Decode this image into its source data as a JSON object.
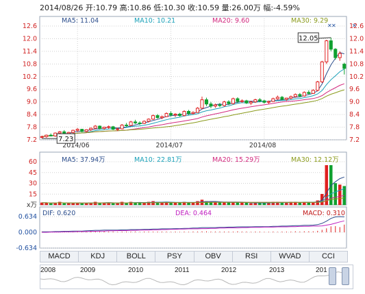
{
  "header": {
    "text": "2014/08/26 开:10.79  高:10.86  低:10.30  收:10.59  量:26.00万  幅:-4.59%"
  },
  "price_panel": {
    "ma": [
      {
        "label": "MA5: 11.04",
        "color": "#2b4d8c"
      },
      {
        "label": "MA10: 10.21",
        "color": "#19a0b8"
      },
      {
        "label": "MA20: 9.60",
        "color": "#d2287e"
      },
      {
        "label": "MA30: 9.29",
        "color": "#8a9a1a"
      }
    ],
    "y_ticks": [
      "12.6",
      "12.0",
      "11.4",
      "10.8",
      "10.2",
      "9.6",
      "9.0",
      "8.4",
      "7.8",
      "7.2"
    ],
    "x_ticks": [
      "2014/06",
      "2014/07",
      "2014/08"
    ],
    "high_label": "12.05",
    "low_label": "7.23"
  },
  "volume_panel": {
    "ma": [
      {
        "label": "MA5: 37.94万",
        "color": "#2b4d8c"
      },
      {
        "label": "MA10: 22.81万",
        "color": "#19a0b8"
      },
      {
        "label": "MA20: 15.29万",
        "color": "#d2287e"
      },
      {
        "label": "MA30: 12.12万",
        "color": "#8a9a1a"
      }
    ],
    "y_ticks": [
      "60",
      "45",
      "30",
      "15"
    ],
    "unit": "x万"
  },
  "macd_panel": {
    "dif": {
      "label": "DIF: 0.620",
      "color": "#2b4d8c"
    },
    "dea": {
      "label": "DEA: 0.464",
      "color": "#c020c0"
    },
    "macd": {
      "label": "MACD: 0.310",
      "color": "#c01818"
    },
    "y_ticks": [
      "0.634",
      "0.000",
      "-0.634"
    ]
  },
  "tabs": [
    "MACD",
    "KDJ",
    "BOLL",
    "PSY",
    "OBV",
    "RSI",
    "WVAD",
    "CCI"
  ],
  "active_tab": "MACD",
  "years": [
    "2008",
    "2009",
    "2010",
    "2011",
    "2012",
    "2013",
    "201"
  ],
  "colors": {
    "up": "#e02020",
    "down": "#10a030",
    "grid": "#d0d0d0",
    "axis_red": "#d02020",
    "axis_blue": "#2050a0"
  },
  "chart_data": {
    "type": "candlestick",
    "title": "",
    "x_ticks": [
      "2014/06",
      "2014/07",
      "2014/08"
    ],
    "ylim": [
      7.2,
      12.6
    ],
    "grid": true,
    "candles": [
      [
        7.32,
        7.4,
        7.26,
        7.35
      ],
      [
        7.35,
        7.45,
        7.3,
        7.42
      ],
      [
        7.42,
        7.5,
        7.36,
        7.38
      ],
      [
        7.38,
        7.55,
        7.35,
        7.52
      ],
      [
        7.52,
        7.62,
        7.45,
        7.58
      ],
      [
        7.58,
        7.66,
        7.48,
        7.5
      ],
      [
        7.5,
        7.58,
        7.42,
        7.55
      ],
      [
        7.55,
        7.68,
        7.5,
        7.65
      ],
      [
        7.65,
        7.75,
        7.58,
        7.7
      ],
      [
        7.7,
        7.72,
        7.55,
        7.6
      ],
      [
        7.6,
        7.7,
        7.55,
        7.68
      ],
      [
        7.68,
        7.78,
        7.62,
        7.75
      ],
      [
        7.75,
        7.9,
        7.7,
        7.85
      ],
      [
        7.85,
        7.88,
        7.7,
        7.74
      ],
      [
        7.74,
        7.82,
        7.68,
        7.8
      ],
      [
        7.8,
        7.88,
        7.72,
        7.82
      ],
      [
        7.82,
        7.86,
        7.66,
        7.7
      ],
      [
        7.7,
        7.78,
        7.62,
        7.72
      ],
      [
        7.72,
        7.95,
        7.7,
        7.9
      ],
      [
        7.9,
        8.0,
        7.82,
        7.88
      ],
      [
        7.88,
        8.1,
        7.85,
        8.05
      ],
      [
        8.05,
        8.15,
        7.95,
        8.0
      ],
      [
        8.0,
        8.08,
        7.9,
        7.98
      ],
      [
        7.98,
        8.12,
        7.95,
        8.08
      ],
      [
        8.08,
        8.22,
        8.02,
        8.18
      ],
      [
        8.18,
        8.4,
        8.15,
        8.35
      ],
      [
        8.35,
        8.42,
        8.2,
        8.25
      ],
      [
        8.25,
        8.35,
        8.18,
        8.3
      ],
      [
        8.3,
        8.5,
        8.28,
        8.45
      ],
      [
        8.45,
        8.55,
        8.3,
        8.38
      ],
      [
        8.38,
        8.46,
        8.28,
        8.42
      ],
      [
        8.42,
        8.48,
        8.3,
        8.35
      ],
      [
        8.35,
        8.6,
        8.32,
        8.55
      ],
      [
        8.55,
        8.62,
        8.38,
        8.45
      ],
      [
        8.45,
        8.55,
        8.4,
        8.5
      ],
      [
        8.5,
        8.75,
        8.48,
        8.7
      ],
      [
        8.7,
        9.25,
        8.65,
        9.1
      ],
      [
        9.1,
        9.2,
        8.8,
        8.9
      ],
      [
        8.9,
        9.0,
        8.7,
        8.8
      ],
      [
        8.8,
        8.92,
        8.72,
        8.86
      ],
      [
        8.86,
        8.95,
        8.75,
        8.82
      ],
      [
        8.82,
        9.05,
        8.78,
        9.0
      ],
      [
        9.0,
        9.08,
        8.85,
        8.92
      ],
      [
        8.92,
        9.2,
        8.88,
        9.15
      ],
      [
        9.15,
        9.22,
        8.95,
        9.02
      ],
      [
        9.02,
        9.12,
        8.95,
        9.05
      ],
      [
        9.05,
        9.1,
        8.9,
        8.95
      ],
      [
        8.95,
        9.05,
        8.85,
        9.0
      ],
      [
        9.0,
        9.15,
        8.95,
        9.1
      ],
      [
        9.1,
        9.18,
        8.98,
        9.05
      ],
      [
        9.05,
        9.1,
        8.92,
        8.98
      ],
      [
        8.98,
        9.06,
        8.9,
        9.02
      ],
      [
        9.02,
        9.2,
        9.0,
        9.15
      ],
      [
        9.15,
        9.3,
        9.1,
        9.22
      ],
      [
        9.22,
        9.28,
        9.08,
        9.12
      ],
      [
        9.12,
        9.2,
        9.05,
        9.18
      ],
      [
        9.18,
        9.3,
        9.12,
        9.25
      ],
      [
        9.25,
        9.4,
        9.2,
        9.35
      ],
      [
        9.35,
        9.42,
        9.22,
        9.28
      ],
      [
        9.28,
        9.5,
        9.25,
        9.45
      ],
      [
        9.45,
        9.55,
        9.35,
        9.4
      ],
      [
        9.4,
        9.6,
        9.38,
        9.55
      ],
      [
        9.55,
        10.0,
        9.5,
        9.95
      ],
      [
        9.95,
        10.95,
        9.9,
        10.9
      ],
      [
        10.9,
        11.95,
        10.8,
        11.9
      ],
      [
        11.9,
        12.05,
        11.4,
        11.5
      ],
      [
        11.5,
        11.55,
        11.0,
        11.1
      ],
      [
        11.1,
        11.4,
        10.95,
        11.3
      ],
      [
        10.79,
        10.86,
        10.3,
        10.59
      ]
    ],
    "volume": {
      "ylim": [
        0,
        60
      ],
      "values": [
        3,
        3,
        2,
        3,
        4,
        2,
        2,
        3,
        3,
        2,
        2,
        3,
        4,
        3,
        3,
        3,
        2,
        2,
        4,
        3,
        4,
        3,
        3,
        3,
        4,
        5,
        4,
        3,
        4,
        3,
        3,
        3,
        4,
        3,
        3,
        5,
        7,
        5,
        4,
        3,
        3,
        4,
        3,
        4,
        3,
        3,
        3,
        2,
        3,
        3,
        3,
        3,
        4,
        4,
        3,
        3,
        4,
        4,
        3,
        4,
        4,
        4,
        6,
        15,
        55,
        55,
        30,
        28,
        26
      ]
    },
    "macd": {
      "ylim": [
        -0.634,
        0.634
      ],
      "dif": [
        0.02,
        0.02,
        0.02,
        0.03,
        0.03,
        0.04,
        0.04,
        0.05,
        0.05,
        0.05,
        0.06,
        0.07,
        0.08,
        0.08,
        0.09,
        0.09,
        0.09,
        0.09,
        0.1,
        0.1,
        0.11,
        0.11,
        0.11,
        0.12,
        0.12,
        0.13,
        0.13,
        0.14,
        0.14,
        0.14,
        0.15,
        0.15,
        0.16,
        0.16,
        0.17,
        0.17,
        0.19,
        0.19,
        0.19,
        0.19,
        0.2,
        0.2,
        0.21,
        0.21,
        0.22,
        0.22,
        0.22,
        0.22,
        0.23,
        0.23,
        0.23,
        0.23,
        0.24,
        0.24,
        0.25,
        0.25,
        0.26,
        0.27,
        0.27,
        0.28,
        0.28,
        0.29,
        0.31,
        0.36,
        0.45,
        0.56,
        0.62,
        0.63,
        0.62
      ],
      "dea": [
        0.0,
        0.0,
        0.01,
        0.01,
        0.01,
        0.02,
        0.02,
        0.02,
        0.03,
        0.03,
        0.03,
        0.04,
        0.04,
        0.05,
        0.05,
        0.06,
        0.06,
        0.07,
        0.07,
        0.07,
        0.08,
        0.08,
        0.09,
        0.09,
        0.09,
        0.1,
        0.1,
        0.11,
        0.11,
        0.12,
        0.12,
        0.13,
        0.13,
        0.14,
        0.14,
        0.14,
        0.15,
        0.15,
        0.16,
        0.16,
        0.17,
        0.17,
        0.18,
        0.18,
        0.18,
        0.19,
        0.19,
        0.2,
        0.2,
        0.2,
        0.21,
        0.21,
        0.21,
        0.22,
        0.22,
        0.22,
        0.23,
        0.23,
        0.24,
        0.24,
        0.24,
        0.25,
        0.25,
        0.26,
        0.29,
        0.32,
        0.37,
        0.42,
        0.46
      ],
      "bars": [
        0.02,
        0.02,
        0.01,
        0.02,
        0.02,
        0.02,
        0.02,
        0.03,
        0.02,
        0.02,
        0.03,
        0.03,
        0.04,
        0.03,
        0.04,
        0.03,
        0.03,
        0.02,
        0.03,
        0.03,
        0.03,
        0.03,
        0.02,
        0.03,
        0.03,
        0.03,
        0.03,
        0.03,
        0.03,
        0.02,
        0.03,
        0.02,
        0.03,
        0.02,
        0.03,
        0.03,
        0.04,
        0.04,
        0.03,
        0.03,
        0.03,
        0.03,
        0.03,
        0.03,
        0.04,
        0.03,
        0.03,
        0.02,
        0.03,
        0.03,
        0.02,
        0.02,
        0.03,
        0.02,
        0.03,
        0.03,
        0.03,
        0.04,
        0.03,
        0.04,
        0.04,
        0.04,
        0.06,
        0.1,
        0.16,
        0.24,
        0.25,
        0.21,
        0.31
      ]
    }
  }
}
